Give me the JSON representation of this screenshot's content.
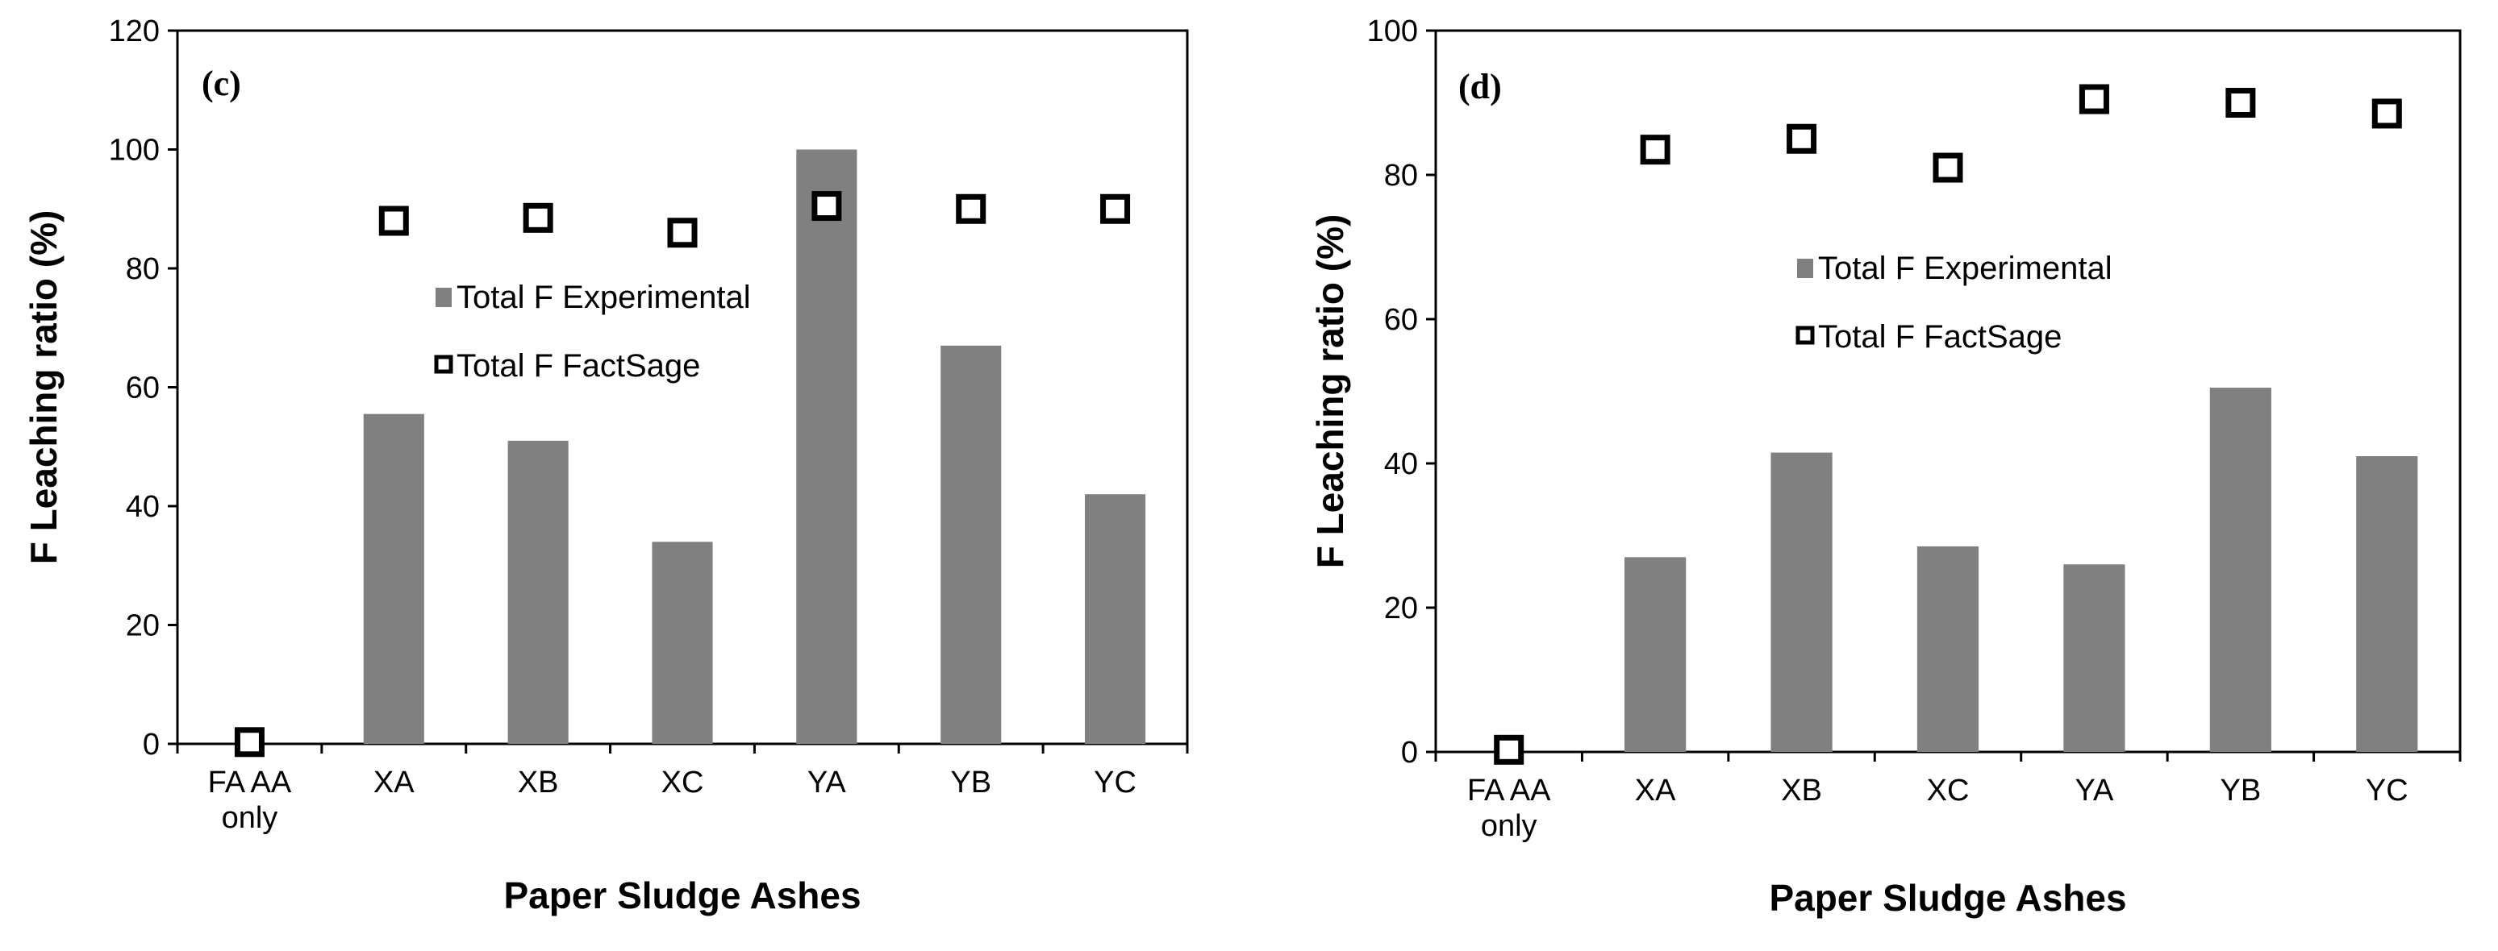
{
  "chart_data": [
    {
      "type": "bar",
      "panel_label": "(c)",
      "categories": [
        [
          "FA AA",
          "only"
        ],
        [
          "XA"
        ],
        [
          "XB"
        ],
        [
          "XC"
        ],
        [
          "YA"
        ],
        [
          "YB"
        ],
        [
          "YC"
        ]
      ],
      "series": [
        {
          "name": "Total F Experimental",
          "kind": "bar",
          "color": "#808080",
          "values": [
            0,
            55.5,
            51,
            34,
            100,
            67,
            42
          ]
        },
        {
          "name": "Total F FactSage",
          "kind": "marker",
          "marker": "hollow-square",
          "color": "#000000",
          "values": [
            0.3,
            88,
            88.5,
            86,
            90.5,
            90,
            90
          ]
        }
      ],
      "xlabel": "Paper Sludge Ashes",
      "ylabel": "F Leaching ratio (%)",
      "ylim": [
        0,
        120
      ],
      "yticks": [
        0,
        20,
        40,
        60,
        80,
        100,
        120
      ],
      "grid": false,
      "legend": "upper-middle"
    },
    {
      "type": "bar",
      "panel_label": "(d)",
      "categories": [
        [
          "FA AA",
          "only"
        ],
        [
          "XA"
        ],
        [
          "XB"
        ],
        [
          "XC"
        ],
        [
          "YA"
        ],
        [
          "YB"
        ],
        [
          "YC"
        ]
      ],
      "series": [
        {
          "name": "Total F Experimental",
          "kind": "bar",
          "color": "#808080",
          "values": [
            0,
            27,
            41.5,
            28.5,
            26,
            50.5,
            41
          ]
        },
        {
          "name": "Total F FactSage",
          "kind": "marker",
          "marker": "hollow-square",
          "color": "#000000",
          "values": [
            0.3,
            83.5,
            85,
            81,
            90.5,
            90,
            88.5
          ]
        }
      ],
      "xlabel": "Paper Sludge Ashes",
      "ylabel": "F Leaching ratio (%)",
      "ylim": [
        0,
        100
      ],
      "yticks": [
        0,
        20,
        40,
        60,
        80,
        100
      ],
      "grid": false,
      "legend": "upper-middle"
    }
  ]
}
